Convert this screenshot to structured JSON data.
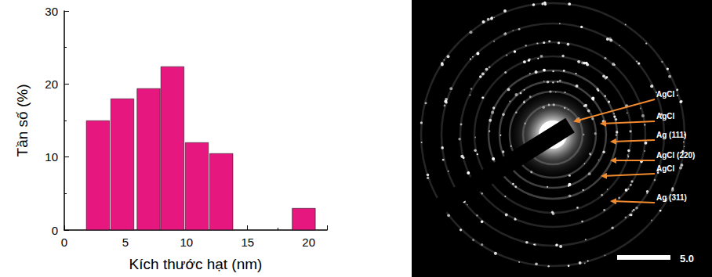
{
  "chart_data": {
    "type": "bar",
    "xlabel": "Kích thước hạt (nm)",
    "ylabel": "Tần số (%)",
    "x": [
      2.75,
      4.75,
      6.9,
      8.85,
      10.85,
      12.85,
      19.6
    ],
    "values": [
      15,
      18,
      19.4,
      22.4,
      12,
      10.5,
      3
    ],
    "color": "#e6187f",
    "xlim": [
      0,
      21.5
    ],
    "xticks": [
      0,
      5,
      10,
      15,
      20
    ],
    "ylim": [
      0,
      30
    ],
    "yticks": [
      0,
      10,
      20,
      30
    ]
  },
  "diffraction_pattern": {
    "ring_labels": [
      "AgCl",
      "AgCl",
      "Ag (111)",
      "AgCl (220)",
      "AgCl",
      "Ag (311)"
    ],
    "scale_bar_label": "5.0"
  }
}
